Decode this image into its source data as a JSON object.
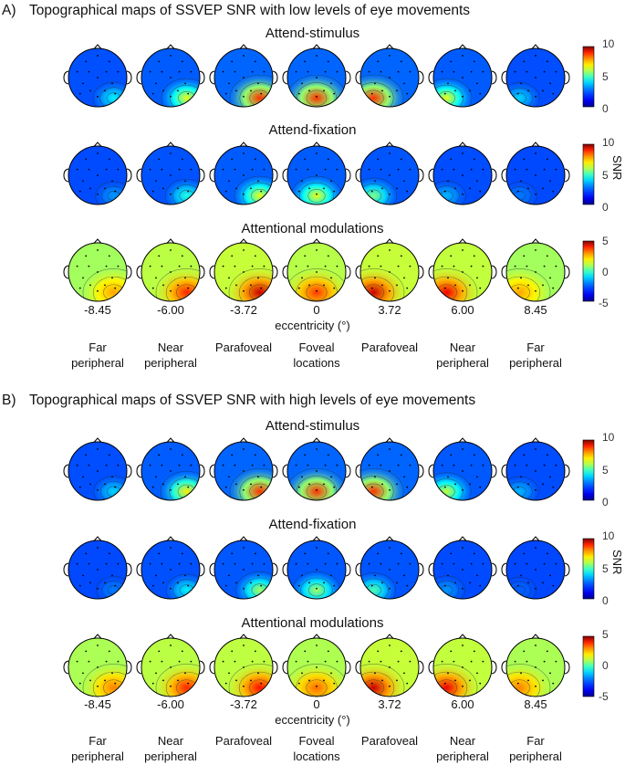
{
  "panels": [
    {
      "label": "A)",
      "title": "Topographical maps of SSVEP SNR with low levels of eye movements",
      "rows": [
        {
          "title": "Attend-stimulus",
          "scale": "snr",
          "intensity": [
            0.25,
            0.55,
            0.85,
            0.85,
            0.85,
            0.55,
            0.2
          ],
          "focus": [
            "right",
            "right",
            "right",
            "mid",
            "left",
            "left",
            "left"
          ]
        },
        {
          "title": "Attend-fixation",
          "scale": "snr",
          "intensity": [
            0.1,
            0.3,
            0.55,
            0.55,
            0.4,
            0.15,
            0.05
          ],
          "focus": [
            "right",
            "right",
            "right",
            "mid",
            "left",
            "left",
            "left"
          ]
        },
        {
          "title": "Attentional modulations",
          "scale": "mod",
          "intensity": [
            0.45,
            0.75,
            0.9,
            0.7,
            0.9,
            0.85,
            0.45
          ],
          "focus": [
            "right",
            "right",
            "right",
            "mid",
            "left",
            "left",
            "left"
          ]
        }
      ]
    },
    {
      "label": "B)",
      "title": "Topographical maps of SSVEP SNR with high levels of eye movements",
      "rows": [
        {
          "title": "Attend-stimulus",
          "scale": "snr",
          "intensity": [
            0.2,
            0.6,
            0.85,
            0.85,
            0.85,
            0.5,
            0.15
          ],
          "focus": [
            "right",
            "right",
            "right",
            "mid",
            "left",
            "left",
            "left"
          ]
        },
        {
          "title": "Attend-fixation",
          "scale": "snr",
          "intensity": [
            0.05,
            0.25,
            0.45,
            0.45,
            0.35,
            0.1,
            0.0
          ],
          "focus": [
            "right",
            "right",
            "right",
            "mid",
            "left",
            "left",
            "left"
          ]
        },
        {
          "title": "Attentional modulations",
          "scale": "mod",
          "intensity": [
            0.55,
            0.75,
            0.8,
            0.6,
            0.9,
            0.85,
            0.55
          ],
          "focus": [
            "right",
            "right",
            "right",
            "mid",
            "left",
            "left",
            "left"
          ]
        }
      ]
    }
  ],
  "colorbars": {
    "snr": {
      "ticks": [
        "10",
        "5",
        "0"
      ]
    },
    "mod": {
      "ticks": [
        "5",
        "0",
        "-5"
      ]
    },
    "snr_label": "SNR"
  },
  "eccentricities": [
    "-8.45",
    "-6.00",
    "-3.72",
    "0",
    "3.72",
    "6.00",
    "8.45"
  ],
  "eccentricity_label": "eccentricity (°)",
  "locations": [
    [
      "Far",
      "peripheral"
    ],
    [
      "Near",
      "peripheral"
    ],
    [
      "Parafoveal"
    ],
    [
      "Foveal",
      "locations"
    ],
    [
      "Parafoveal"
    ],
    [
      "Near",
      "peripheral"
    ],
    [
      "Far",
      "peripheral"
    ]
  ]
}
